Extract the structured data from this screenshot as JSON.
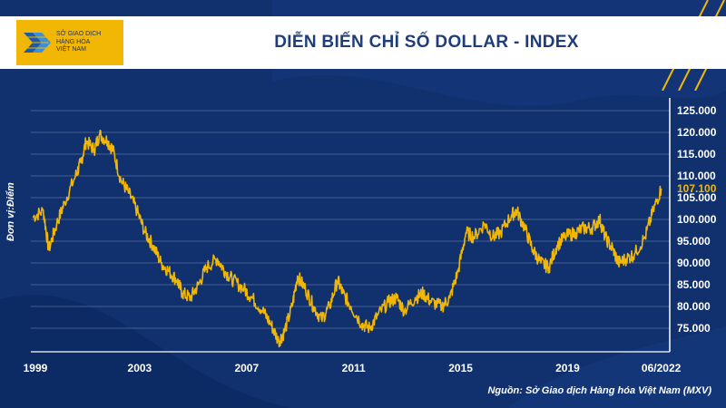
{
  "header": {
    "logo_line1": "SỞ GIAO DỊCH",
    "logo_line2": "HÀNG HÓA",
    "logo_line3": "VIỆT NAM",
    "title": "DIỄN BIẾN CHỈ SỐ DOLLAR - INDEX"
  },
  "source_note": "Nguồn: Sở Giao dịch Hàng hóa Việt Nam (MXV)",
  "colors": {
    "background": "#10306e",
    "line": "#f2b705",
    "accent": "#f2b705",
    "gridline": "#5a6f9e"
  },
  "chart_data": {
    "type": "line",
    "ylabel": "Đơn vị:Điểm",
    "xlabel": "",
    "ylim": [
      71,
      126
    ],
    "xlim": [
      1999.0,
      2022.75
    ],
    "yticks": [
      75,
      80,
      85,
      90,
      95,
      100,
      105,
      110,
      115,
      120,
      125
    ],
    "ytick_labels": [
      "75.000",
      "80.000",
      "85.000",
      "90.000",
      "95.000",
      "100.000",
      "105.000",
      "110.000",
      "115.000",
      "120.000",
      "125.000"
    ],
    "xtick_positions": [
      1999.1,
      2003.0,
      2007.0,
      2011.0,
      2015.0,
      2019.0,
      2022.5
    ],
    "xtick_labels": [
      "1999",
      "2003",
      "2007",
      "2011",
      "2015",
      "2019",
      "06/2022"
    ],
    "grid": true,
    "last_value_label": "107.100",
    "series": [
      {
        "x": [
          1999.0,
          1999.4,
          1999.6,
          1999.9,
          2000.2,
          2000.6,
          2000.8,
          2001.0,
          2001.3,
          2001.5,
          2001.8,
          2002.0,
          2002.3,
          2002.6,
          2002.9,
          2003.2,
          2003.5,
          2003.8,
          2004.1,
          2004.4,
          2004.6,
          2004.9,
          2005.2,
          2005.5,
          2005.9,
          2006.2,
          2006.5,
          2006.9,
          2007.2,
          2007.6,
          2007.9,
          2008.2,
          2008.4,
          2008.7,
          2008.9,
          2009.2,
          2009.5,
          2009.8,
          2010.1,
          2010.4,
          2010.6,
          2010.9,
          2011.3,
          2011.6,
          2011.9,
          2012.3,
          2012.6,
          2012.9,
          2013.3,
          2013.6,
          2013.9,
          2014.3,
          2014.6,
          2014.9,
          2015.2,
          2015.5,
          2015.9,
          2016.2,
          2016.5,
          2016.9,
          2017.1,
          2017.4,
          2017.7,
          2018.0,
          2018.3,
          2018.6,
          2018.9,
          2019.3,
          2019.6,
          2019.9,
          2020.2,
          2020.4,
          2020.7,
          2020.9,
          2021.2,
          2021.5,
          2021.9,
          2022.2,
          2022.5
        ],
        "values": [
          100.5,
          102,
          93,
          99,
          104,
          110,
          113,
          118,
          116,
          119.5,
          118,
          116,
          109,
          106,
          102,
          97,
          94,
          90,
          88,
          86,
          83,
          82,
          85,
          89,
          91,
          88,
          86,
          84,
          82,
          79,
          76,
          72,
          74,
          80,
          87,
          84,
          80,
          77,
          80,
          86,
          83,
          80,
          76,
          75,
          78,
          81,
          82,
          79,
          82,
          83,
          81,
          80,
          82,
          88,
          97,
          96,
          99,
          96,
          97,
          101,
          102,
          98,
          93,
          90,
          89,
          94,
          96,
          97,
          98,
          98,
          100,
          96,
          93,
          90,
          91,
          92,
          96,
          102,
          107.1
        ]
      }
    ]
  }
}
